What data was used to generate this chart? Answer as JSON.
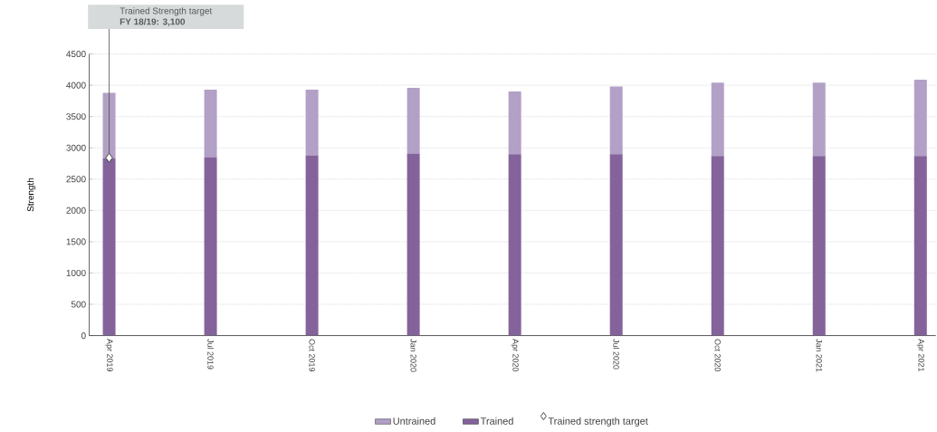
{
  "chart_data": {
    "type": "bar",
    "stacked": true,
    "ylabel": "Strength",
    "categories": [
      "Apr 2019",
      "Jul 2019",
      "Oct 2019",
      "Jan 2020",
      "Apr 2020",
      "Jul 2020",
      "Oct 2020",
      "Jan 2021",
      "Apr 2021"
    ],
    "series": [
      {
        "name": "Trained",
        "color": "#84639b",
        "values": [
          2830,
          2850,
          2880,
          2910,
          2900,
          2900,
          2870,
          2870,
          2870
        ]
      },
      {
        "name": "Untrained",
        "color": "#b3a0c6",
        "values": [
          1050,
          1080,
          1050,
          1050,
          1000,
          1080,
          1170,
          1170,
          1220
        ]
      },
      {
        "name": "Trained strength target",
        "type": "scatter",
        "marker": "diamond",
        "color": "#ffffff",
        "x": [
          "Apr 2019"
        ],
        "values": [
          2840
        ]
      }
    ],
    "ylim": [
      0,
      4500
    ],
    "yticks": [
      0,
      500,
      1000,
      1500,
      2000,
      2500,
      3000,
      3500,
      4000,
      4500
    ],
    "grid": "y",
    "legend": "bottom",
    "annotations": [
      "Trained Strength target",
      {
        "text": "FY 18/19: 3,100",
        "x": "Apr 2019",
        "y": 2840
      }
    ]
  }
}
